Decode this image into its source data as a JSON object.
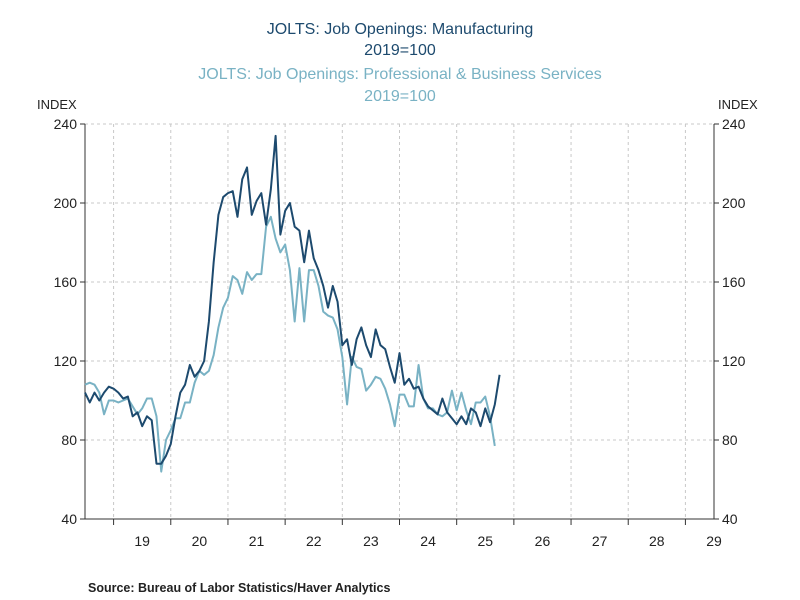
{
  "chart_data": {
    "type": "line",
    "titles": [
      {
        "text": "JOLTS: Job Openings: Manufacturing",
        "color": "#1d4a6e"
      },
      {
        "text": "2019=100",
        "color": "#1d4a6e"
      },
      {
        "text": "JOLTS: Job Openings: Professional & Business Services",
        "color": "#79b2c4"
      },
      {
        "text": "2019=100",
        "color": "#79b2c4"
      }
    ],
    "ylabel_left": "INDEX",
    "ylabel_right": "INDEX",
    "ylim": [
      40,
      240
    ],
    "yticks": [
      40,
      80,
      120,
      160,
      200,
      240
    ],
    "xlim": [
      2018.5,
      2029.5
    ],
    "xtick_labels": [
      {
        "label": "19",
        "year": 2019
      },
      {
        "label": "20",
        "year": 2020
      },
      {
        "label": "21",
        "year": 2021
      },
      {
        "label": "22",
        "year": 2022
      },
      {
        "label": "23",
        "year": 2023
      },
      {
        "label": "24",
        "year": 2024
      },
      {
        "label": "25",
        "year": 2025
      },
      {
        "label": "26",
        "year": 2026
      },
      {
        "label": "27",
        "year": 2027
      },
      {
        "label": "28",
        "year": 2028
      },
      {
        "label": "29",
        "year": 2029
      }
    ],
    "grid": true,
    "series_start": "2018-07",
    "frequency": "monthly",
    "series": [
      {
        "color": "#1d4a6e",
        "values": [
          104,
          99,
          104,
          100,
          104,
          107,
          106,
          104,
          101,
          102,
          92,
          94,
          87,
          92,
          90,
          68,
          68,
          72,
          78,
          92,
          104,
          108,
          118,
          112,
          115,
          120,
          140,
          170,
          194,
          203,
          205,
          206,
          193,
          212,
          218,
          194,
          201,
          205,
          189,
          207,
          234,
          184,
          196,
          200,
          188,
          186,
          170,
          186,
          172,
          166,
          158,
          147,
          158,
          150,
          128,
          131,
          118,
          131,
          137,
          128,
          122,
          136,
          128,
          126,
          117,
          109,
          124,
          108,
          111,
          106,
          107,
          101,
          97,
          95,
          93,
          101,
          94,
          91,
          88,
          92,
          88,
          96,
          94,
          87,
          96,
          89,
          98,
          113
        ]
      },
      {
        "color": "#79b2c4",
        "values": [
          108,
          109,
          108,
          104,
          93,
          100,
          100,
          99,
          100,
          101,
          97,
          93,
          96,
          101,
          101,
          92,
          64,
          80,
          85,
          91,
          91,
          99,
          99,
          109,
          115,
          113,
          115,
          123,
          137,
          147,
          152,
          163,
          161,
          154,
          165,
          161,
          164,
          164,
          188,
          193,
          182,
          175,
          179,
          166,
          140,
          167,
          140,
          166,
          166,
          158,
          145,
          143,
          142,
          136,
          122,
          98,
          122,
          117,
          116,
          105,
          108,
          112,
          111,
          106,
          98,
          87,
          103,
          103,
          97,
          97,
          118,
          101,
          96,
          96,
          93,
          92,
          94,
          105,
          95,
          104,
          95,
          88,
          99,
          99,
          102,
          92,
          77
        ]
      }
    ],
    "source": "Source:  Bureau of Labor Statistics/Haver Analytics"
  }
}
